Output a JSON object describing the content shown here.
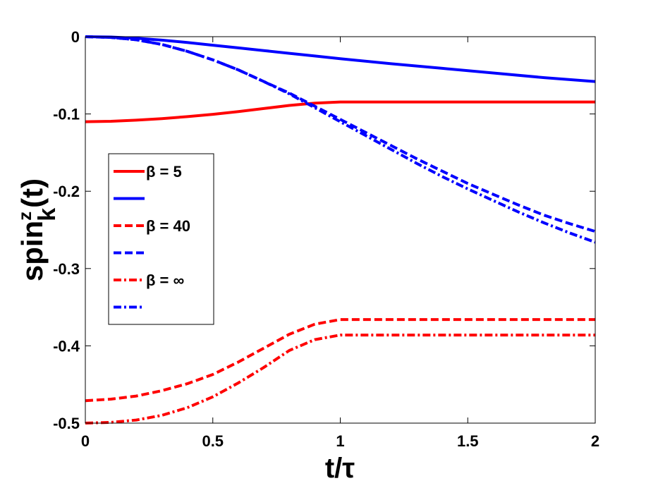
{
  "chart_data": {
    "type": "line",
    "xlabel": "t/τ",
    "ylabel_main": "spin",
    "ylabel_sup": "z",
    "ylabel_sub": "k",
    "ylabel_tail": "(t)",
    "xlim": [
      0,
      2
    ],
    "ylim": [
      -0.5,
      0
    ],
    "x_ticks": [
      0,
      0.5,
      1,
      1.5,
      2
    ],
    "x_tick_labels": [
      "0",
      "0.5",
      "1",
      "1.5",
      "2"
    ],
    "y_ticks": [
      0,
      -0.1,
      -0.2,
      -0.3,
      -0.4,
      -0.5
    ],
    "y_tick_labels": [
      "0",
      "-0.1",
      "-0.2",
      "-0.3",
      "-0.4",
      "-0.5"
    ],
    "grid": false,
    "legend_position": "left",
    "series": [
      {
        "name": "β = 5",
        "color": "#ff0000",
        "dash": "solid",
        "x": [
          0,
          0.1,
          0.2,
          0.3,
          0.4,
          0.5,
          0.6,
          0.7,
          0.8,
          0.9,
          1.0,
          1.2,
          1.5,
          2.0
        ],
        "y": [
          -0.11,
          -0.1095,
          -0.108,
          -0.106,
          -0.1035,
          -0.1005,
          -0.097,
          -0.093,
          -0.089,
          -0.086,
          -0.0845,
          -0.0845,
          -0.0845,
          -0.0845
        ]
      },
      {
        "name": "",
        "color": "#0000ff",
        "dash": "solid",
        "x": [
          0,
          0.1,
          0.2,
          0.3,
          0.4,
          0.5,
          0.6,
          0.7,
          0.8,
          0.9,
          1.0,
          1.2,
          1.4,
          1.6,
          1.8,
          2.0
        ],
        "y": [
          0,
          -0.0005,
          -0.002,
          -0.0045,
          -0.0075,
          -0.011,
          -0.0145,
          -0.018,
          -0.0215,
          -0.025,
          -0.0285,
          -0.035,
          -0.041,
          -0.047,
          -0.053,
          -0.058
        ]
      },
      {
        "name": "β = 40",
        "color": "#ff0000",
        "dash": "dash",
        "x": [
          0,
          0.1,
          0.2,
          0.3,
          0.4,
          0.5,
          0.6,
          0.7,
          0.8,
          0.9,
          1.0,
          1.2,
          1.5,
          2.0
        ],
        "y": [
          -0.471,
          -0.469,
          -0.465,
          -0.458,
          -0.449,
          -0.437,
          -0.421,
          -0.403,
          -0.385,
          -0.372,
          -0.366,
          -0.366,
          -0.366,
          -0.366
        ]
      },
      {
        "name": "",
        "color": "#0000ff",
        "dash": "dash",
        "x": [
          0,
          0.1,
          0.2,
          0.3,
          0.4,
          0.5,
          0.6,
          0.7,
          0.8,
          0.9,
          1.0,
          1.1,
          1.2,
          1.3,
          1.4,
          1.5,
          1.6,
          1.7,
          1.8,
          1.9,
          2.0
        ],
        "y": [
          0,
          -0.001,
          -0.004,
          -0.01,
          -0.019,
          -0.03,
          -0.043,
          -0.058,
          -0.073,
          -0.09,
          -0.107,
          -0.124,
          -0.141,
          -0.158,
          -0.174,
          -0.19,
          -0.204,
          -0.218,
          -0.231,
          -0.242,
          -0.252
        ]
      },
      {
        "name": "β = ∞",
        "color": "#ff0000",
        "dash": "dashdot",
        "x": [
          0,
          0.1,
          0.2,
          0.3,
          0.4,
          0.5,
          0.6,
          0.7,
          0.8,
          0.9,
          1.0,
          1.2,
          1.5,
          2.0
        ],
        "y": [
          -0.5,
          -0.499,
          -0.496,
          -0.49,
          -0.48,
          -0.466,
          -0.448,
          -0.428,
          -0.406,
          -0.392,
          -0.386,
          -0.386,
          -0.386,
          -0.386
        ]
      },
      {
        "name": "",
        "color": "#0000ff",
        "dash": "dashdot",
        "x": [
          0,
          0.1,
          0.2,
          0.3,
          0.4,
          0.5,
          0.6,
          0.7,
          0.8,
          0.9,
          1.0,
          1.1,
          1.2,
          1.3,
          1.4,
          1.5,
          1.6,
          1.7,
          1.8,
          1.9,
          2.0
        ],
        "y": [
          0,
          -0.001,
          -0.004,
          -0.01,
          -0.019,
          -0.03,
          -0.043,
          -0.058,
          -0.074,
          -0.092,
          -0.11,
          -0.128,
          -0.146,
          -0.164,
          -0.181,
          -0.197,
          -0.212,
          -0.227,
          -0.241,
          -0.254,
          -0.266
        ]
      }
    ]
  }
}
